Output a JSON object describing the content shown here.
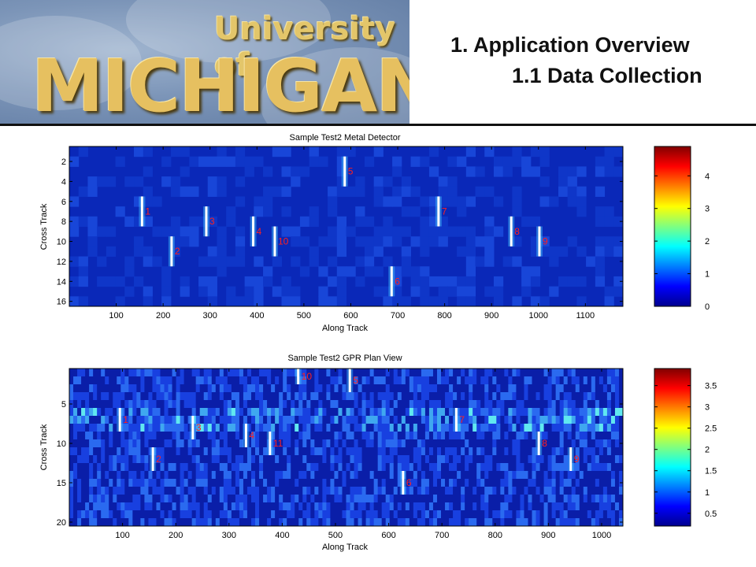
{
  "header": {
    "logo_line1": "University of",
    "logo_line2": "MICHIGAN",
    "title_main": "1. Application Overview",
    "title_sub": "1.1 Data Collection"
  },
  "chart_data": [
    {
      "type": "heatmap",
      "title": "Sample Test2 Metal Detector",
      "xlabel": "Along Track",
      "ylabel": "Cross Track",
      "xlim": [
        0,
        1180
      ],
      "ylim": [
        16.5,
        0.5
      ],
      "xticks": [
        100,
        200,
        300,
        400,
        500,
        600,
        700,
        800,
        900,
        1000,
        1100
      ],
      "yticks": [
        2,
        4,
        6,
        8,
        10,
        12,
        14,
        16
      ],
      "colorbar": {
        "min": 0,
        "max": 4.9,
        "ticks": [
          0,
          1,
          2,
          3,
          4
        ]
      },
      "targets": [
        {
          "label": "1",
          "x": 155,
          "y1": 5.5,
          "y2": 8.5
        },
        {
          "label": "2",
          "x": 218,
          "y1": 9.5,
          "y2": 12.5
        },
        {
          "label": "3",
          "x": 292,
          "y1": 6.5,
          "y2": 9.5
        },
        {
          "label": "4",
          "x": 392,
          "y1": 7.5,
          "y2": 10.5
        },
        {
          "label": "10",
          "x": 438,
          "y1": 8.5,
          "y2": 11.5
        },
        {
          "label": "5",
          "x": 587,
          "y1": 1.5,
          "y2": 4.5
        },
        {
          "label": "6",
          "x": 687,
          "y1": 12.5,
          "y2": 15.5
        },
        {
          "label": "7",
          "x": 787,
          "y1": 5.5,
          "y2": 8.5
        },
        {
          "label": "8",
          "x": 942,
          "y1": 7.5,
          "y2": 10.5
        },
        {
          "label": "9",
          "x": 1002,
          "y1": 8.5,
          "y2": 11.5
        }
      ]
    },
    {
      "type": "heatmap",
      "title": "Sample Test2 GPR Plan View",
      "xlabel": "Along Track",
      "ylabel": "Cross Track",
      "xlim": [
        0,
        1040
      ],
      "ylim": [
        20.5,
        0.5
      ],
      "xticks": [
        100,
        200,
        300,
        400,
        500,
        600,
        700,
        800,
        900,
        1000
      ],
      "yticks": [
        5,
        10,
        15,
        20
      ],
      "colorbar": {
        "min": 0.2,
        "max": 3.9,
        "ticks": [
          0.5,
          1,
          1.5,
          2,
          2.5,
          3,
          3.5
        ]
      },
      "targets": [
        {
          "label": "1",
          "x": 95,
          "y1": 5.5,
          "y2": 8.5
        },
        {
          "label": "2",
          "x": 157,
          "y1": 10.5,
          "y2": 13.5
        },
        {
          "label": "3",
          "x": 232,
          "y1": 6.5,
          "y2": 9.5
        },
        {
          "label": "4",
          "x": 332,
          "y1": 7.5,
          "y2": 10.5
        },
        {
          "label": "11",
          "x": 377,
          "y1": 8.5,
          "y2": 11.5
        },
        {
          "label": "10",
          "x": 430,
          "y1": 0.5,
          "y2": 2.5
        },
        {
          "label": "5",
          "x": 527,
          "y1": 0.5,
          "y2": 3.5
        },
        {
          "label": "6",
          "x": 627,
          "y1": 13.5,
          "y2": 16.5
        },
        {
          "label": "7",
          "x": 727,
          "y1": 5.5,
          "y2": 8.5
        },
        {
          "label": "8",
          "x": 882,
          "y1": 8.5,
          "y2": 11.5
        },
        {
          "label": "9",
          "x": 942,
          "y1": 10.5,
          "y2": 13.5
        }
      ]
    }
  ]
}
